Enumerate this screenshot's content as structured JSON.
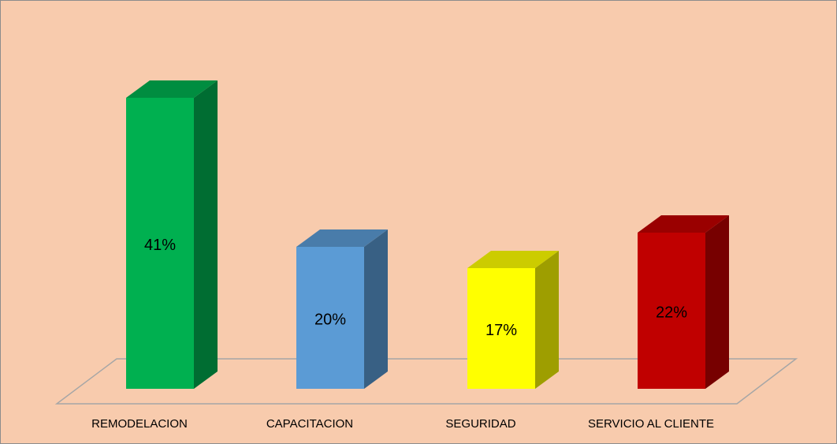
{
  "chart_data": {
    "type": "bar3d",
    "categories": [
      "REMODELACION",
      "CAPACITACION",
      "SEGURIDAD",
      "SERVICIO AL CLIENTE"
    ],
    "values": [
      41,
      20,
      17,
      22
    ],
    "value_labels": [
      "41%",
      "20%",
      "17%",
      "22%"
    ],
    "colors": [
      "#00b050",
      "#5b9bd5",
      "#ffff00",
      "#c00000"
    ]
  }
}
